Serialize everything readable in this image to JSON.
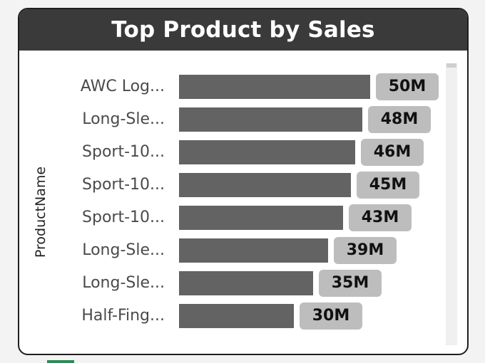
{
  "card": {
    "title": "Top Product by Sales"
  },
  "colors": {
    "header": "#3a3a3a",
    "bar": "#636363",
    "label_bg": "#bdbdbd"
  },
  "chart_data": {
    "type": "bar",
    "orientation": "horizontal",
    "title": "Top Product by Sales",
    "ylabel": "ProductName",
    "xlabel": "",
    "categories": [
      "AWC Log...",
      "Long-Sle...",
      "Sport-10...",
      "Sport-10...",
      "Sport-10...",
      "Long-Sle...",
      "Long-Sle...",
      "Half-Fing..."
    ],
    "values": [
      50,
      48,
      46,
      45,
      43,
      39,
      35,
      30
    ],
    "value_labels": [
      "50M",
      "48M",
      "46M",
      "45M",
      "43M",
      "39M",
      "35M",
      "30M"
    ],
    "value_unit": "M",
    "xlim": [
      0,
      50
    ],
    "grid": false,
    "legend": "none"
  }
}
